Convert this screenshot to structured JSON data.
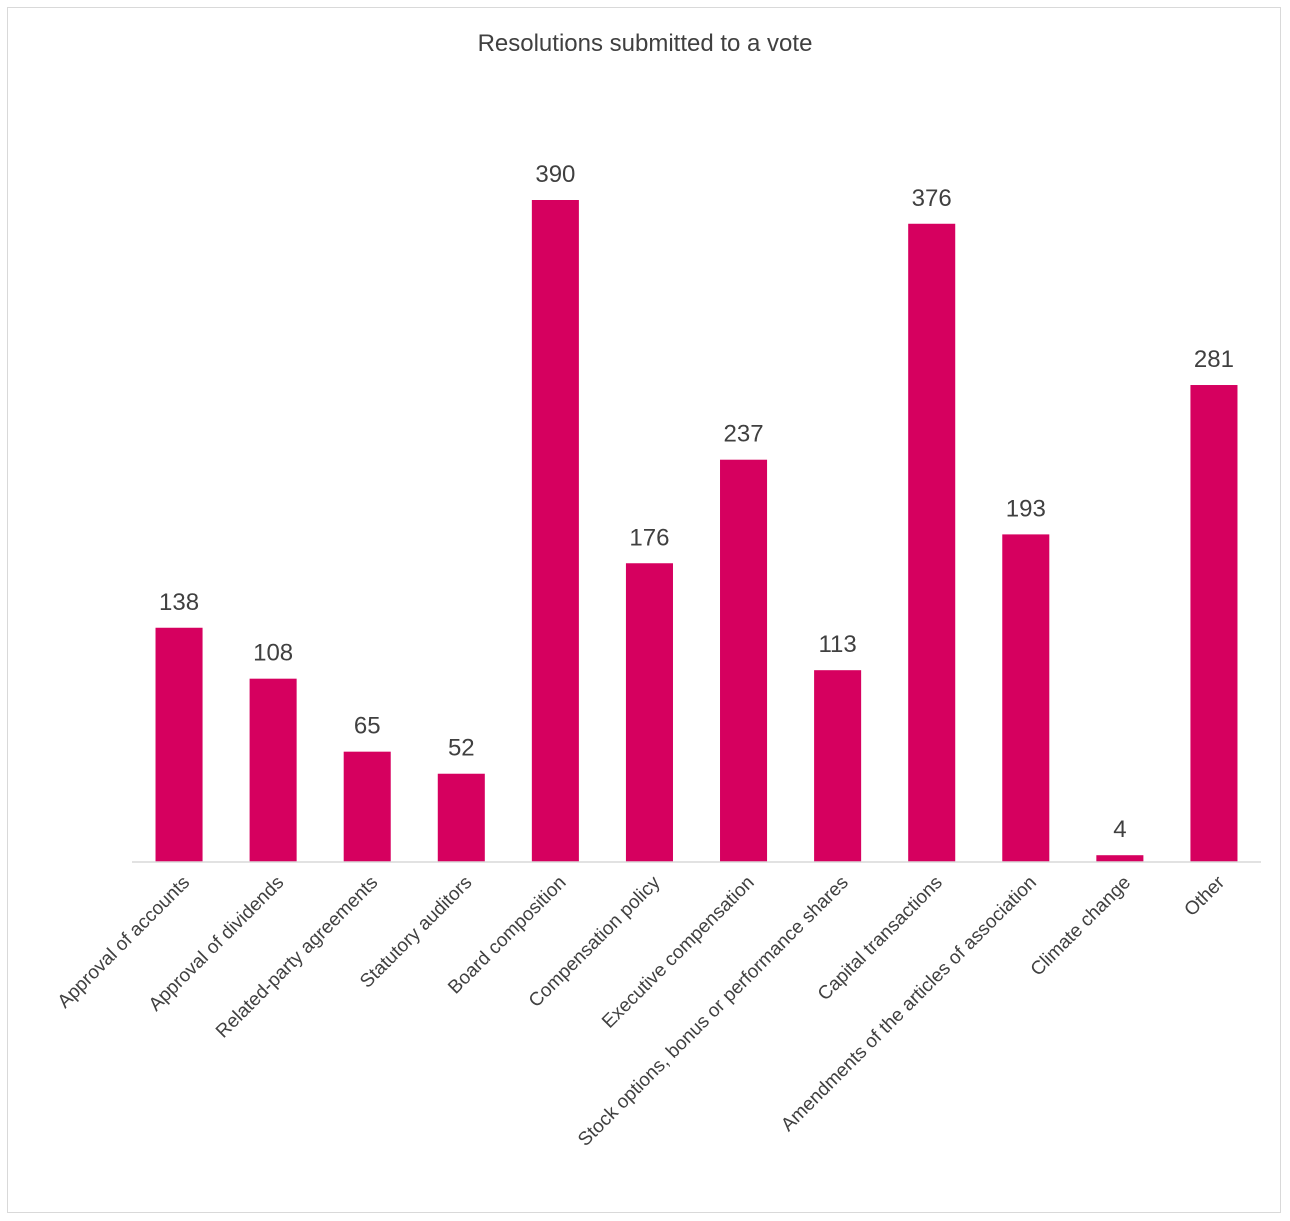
{
  "chart_data": {
    "type": "bar",
    "title": "Resolutions submitted to a vote",
    "categories": [
      "Approval of accounts",
      "Approval of dividends",
      "Related-party agreements",
      "Statutory auditors",
      "Board composition",
      "Compensation policy",
      "Executive compensation",
      "Stock options, bonus or performance shares",
      "Capital transactions",
      "Amendments of the articles of association",
      "Climate change",
      "Other"
    ],
    "values": [
      138,
      108,
      65,
      52,
      390,
      176,
      237,
      113,
      376,
      193,
      4,
      281
    ],
    "xlabel": "",
    "ylabel": "",
    "ylim": [
      0,
      390
    ],
    "grid": false,
    "legend": "none",
    "data_labels": true,
    "colors": {
      "bar": "#d6005f",
      "axis": "#d9d9d9",
      "text": "#404040"
    }
  }
}
